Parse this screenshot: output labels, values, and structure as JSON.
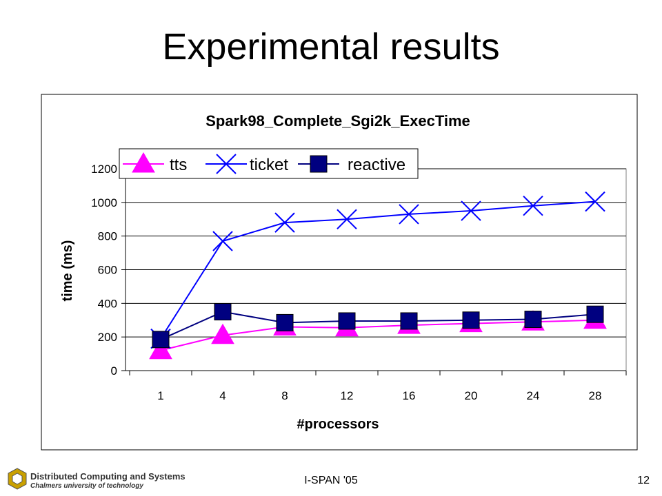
{
  "slide": {
    "title": "Experimental results",
    "footer": "I-SPAN '05",
    "page_number": "12",
    "logo": {
      "name": "Distributed Computing and Systems",
      "subtitle": "Chalmers university of technology"
    }
  },
  "colors": {
    "tts": "#ff00ff",
    "ticket": "#0000ff",
    "reactive": "#000080",
    "line_dark": "#000080",
    "grid": "#000000"
  },
  "chart_data": {
    "type": "line",
    "title": "Spark98_Complete_Sgi2k_ExecTime",
    "xlabel": "#processors",
    "ylabel": "time (ms)",
    "categories": [
      "1",
      "4",
      "8",
      "12",
      "16",
      "20",
      "24",
      "28"
    ],
    "ylim": [
      0,
      1200
    ],
    "yticks": [
      "0",
      "200",
      "400",
      "600",
      "800",
      "1000",
      "1200"
    ],
    "grid": "horizontal",
    "legend_position": "top-left",
    "series": [
      {
        "name": "tts",
        "marker": "triangle",
        "values": [
          120,
          210,
          260,
          255,
          270,
          280,
          290,
          300
        ]
      },
      {
        "name": "ticket",
        "marker": "x",
        "values": [
          190,
          770,
          880,
          900,
          930,
          950,
          980,
          1005
        ]
      },
      {
        "name": "reactive",
        "marker": "square",
        "values": [
          185,
          350,
          285,
          295,
          295,
          300,
          305,
          335
        ]
      }
    ]
  }
}
